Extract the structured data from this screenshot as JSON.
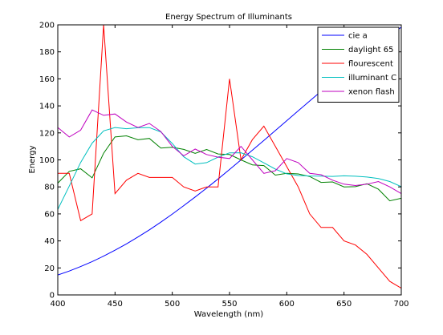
{
  "chart_data": {
    "type": "line",
    "title": "Energy Spectrum of Illuminants",
    "xlabel": "Wavelength (nm)",
    "ylabel": "Energy",
    "xlim": [
      400,
      700
    ],
    "ylim": [
      0,
      200
    ],
    "xticks": [
      400,
      450,
      500,
      550,
      600,
      650,
      700
    ],
    "yticks": [
      0,
      20,
      40,
      60,
      80,
      100,
      120,
      140,
      160,
      180,
      200
    ],
    "grid": false,
    "legend_position": "top-right",
    "x": [
      400,
      410,
      420,
      430,
      440,
      450,
      460,
      470,
      480,
      490,
      500,
      510,
      520,
      530,
      540,
      550,
      560,
      570,
      580,
      590,
      600,
      610,
      620,
      630,
      640,
      650,
      660,
      670,
      680,
      690,
      700
    ],
    "series": [
      {
        "name": "cie a",
        "color": "#0000ff",
        "values": [
          14.7,
          17.7,
          21.0,
          24.7,
          28.7,
          33.1,
          37.8,
          42.9,
          48.2,
          53.9,
          59.9,
          66.1,
          72.5,
          79.1,
          85.9,
          92.9,
          100.0,
          107.2,
          114.4,
          121.7,
          129.0,
          136.3,
          143.6,
          150.8,
          157.9,
          165.0,
          172.0,
          178.8,
          185.4,
          191.9,
          198.3
        ]
      },
      {
        "name": "daylight 65",
        "color": "#008000",
        "values": [
          82.8,
          91.5,
          93.4,
          86.7,
          104.9,
          117.0,
          117.8,
          114.9,
          115.9,
          108.8,
          109.4,
          107.8,
          104.8,
          107.7,
          104.4,
          104.0,
          100.0,
          96.3,
          95.8,
          88.7,
          90.0,
          89.6,
          87.7,
          83.3,
          83.7,
          80.0,
          80.2,
          82.3,
          78.3,
          69.7,
          71.6
        ]
      },
      {
        "name": "flourescent",
        "color": "#ff0000",
        "values": [
          90,
          90,
          55,
          60,
          200,
          75,
          85,
          90,
          87,
          87,
          87,
          80,
          77,
          80,
          80,
          160,
          100,
          115,
          125,
          110,
          95,
          80,
          60,
          50,
          50,
          40,
          37,
          30,
          20,
          10,
          5
        ]
      },
      {
        "name": "illuminant C",
        "color": "#00bfbf",
        "values": [
          63.3,
          80.6,
          98.1,
          112.4,
          121.5,
          124.0,
          123.1,
          123.8,
          123.9,
          120.7,
          112.1,
          102.3,
          96.9,
          98.0,
          102.1,
          105.2,
          105.3,
          102.3,
          97.8,
          93.2,
          89.7,
          88.4,
          88.1,
          88.0,
          87.8,
          88.2,
          87.9,
          87.3,
          86.2,
          84.0,
          80.2
        ]
      },
      {
        "name": "xenon flash",
        "color": "#bf00bf",
        "values": [
          124,
          117,
          122,
          137,
          133,
          134,
          128,
          124,
          127,
          121,
          110,
          103,
          108,
          104,
          102,
          101,
          110,
          100,
          90,
          92,
          101,
          98,
          90,
          89,
          85,
          82,
          81,
          82,
          84,
          80,
          75
        ]
      }
    ]
  }
}
